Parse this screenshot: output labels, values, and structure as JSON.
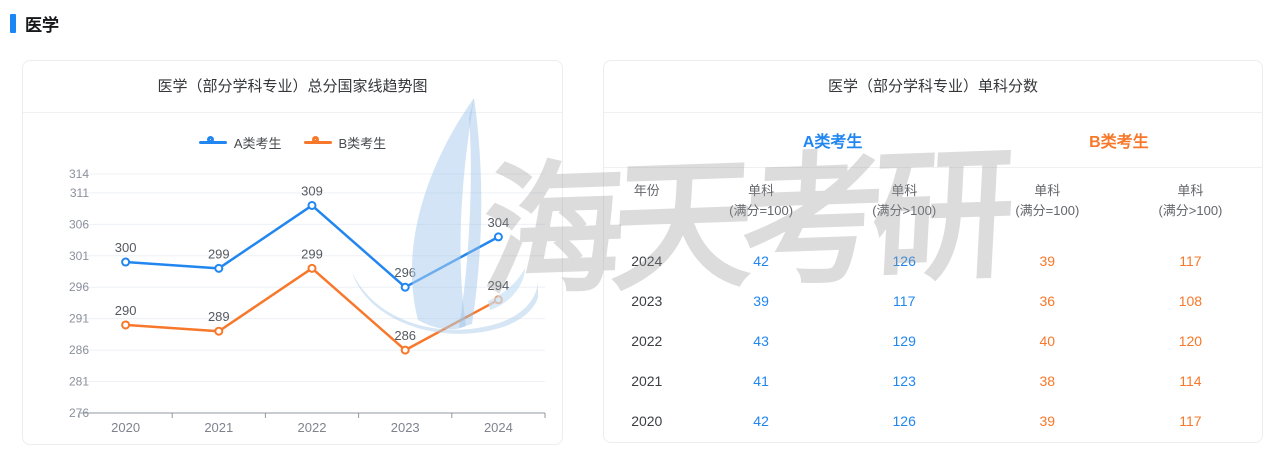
{
  "section": {
    "title": "医学"
  },
  "colors": {
    "blue": "#2186f0",
    "orange": "#f7782a"
  },
  "trend_card": {
    "title": "医学（部分学科专业）总分国家线趋势图"
  },
  "chart_data": {
    "type": "line",
    "title": "医学（部分学科专业）总分国家线趋势图",
    "x": [
      "2020",
      "2021",
      "2022",
      "2023",
      "2024"
    ],
    "series": [
      {
        "name": "A类考生",
        "color": "#2186f0",
        "values": [
          300,
          299,
          309,
          296,
          304
        ]
      },
      {
        "name": "B类考生",
        "color": "#f7782a",
        "values": [
          290,
          289,
          299,
          286,
          294
        ]
      }
    ],
    "yticks": [
      276,
      281,
      286,
      291,
      296,
      301,
      306,
      311,
      314
    ],
    "ylim": [
      276,
      314
    ],
    "grid": true,
    "legend_position": "top"
  },
  "score_card": {
    "title": "医学（部分学科专业）单科分数",
    "group_headers": [
      {
        "label": "A类考生",
        "color": "#2186f0"
      },
      {
        "label": "B类考生",
        "color": "#f7782a"
      }
    ],
    "columns": [
      {
        "title": "年份",
        "sub": "",
        "group": ""
      },
      {
        "title": "单科",
        "sub": "(满分=100)",
        "group": "A"
      },
      {
        "title": "单科",
        "sub": "(满分>100)",
        "group": "A"
      },
      {
        "title": "单科",
        "sub": "(满分=100)",
        "group": "B"
      },
      {
        "title": "单科",
        "sub": "(满分>100)",
        "group": "B"
      }
    ],
    "rows": [
      {
        "year": "2024",
        "values": [
          "42",
          "126",
          "39",
          "117"
        ]
      },
      {
        "year": "2023",
        "values": [
          "39",
          "117",
          "36",
          "108"
        ]
      },
      {
        "year": "2022",
        "values": [
          "43",
          "129",
          "40",
          "120"
        ]
      },
      {
        "year": "2021",
        "values": [
          "41",
          "123",
          "38",
          "114"
        ]
      },
      {
        "year": "2020",
        "values": [
          "42",
          "126",
          "39",
          "117"
        ]
      }
    ]
  },
  "watermark": {
    "text": "海天考研"
  }
}
